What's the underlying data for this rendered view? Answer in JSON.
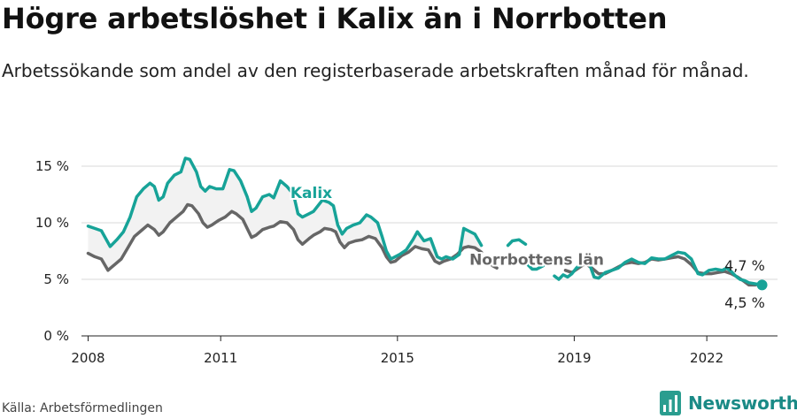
{
  "header": {
    "title": "Högre arbetslöshet i Kalix än i Norrbotten",
    "subtitle": "Arbetssökande som andel av den registerbaserade arbetskraften månad för månad."
  },
  "footer": {
    "source": "Källa: Arbetsförmedlingen",
    "brand": "Newsworthy"
  },
  "colors": {
    "kalix": "#17a398",
    "norrbotten": "#666666",
    "fill": "#f2f2f2",
    "grid": "#d9d9d9"
  },
  "chart_data": {
    "type": "line",
    "title": "Högre arbetslöshet i Kalix än i Norrbotten",
    "xlabel": "",
    "ylabel": "",
    "xlim": [
      2007.85,
      2023.6
    ],
    "ylim": [
      0,
      15
    ],
    "y_ticks": [
      0,
      5,
      10,
      15
    ],
    "y_tick_labels": [
      "0 %",
      "5 %",
      "10 %",
      "15 %"
    ],
    "x_ticks": [
      2008,
      2011,
      2015,
      2019,
      2022
    ],
    "x_tick_labels": [
      "2008",
      "2011",
      "2015",
      "2019",
      "2022"
    ],
    "grid": true,
    "series": [
      {
        "name": "Kalix",
        "label": "Kalix",
        "points": [
          [
            2008.0,
            9.7
          ],
          [
            2008.15,
            9.5
          ],
          [
            2008.3,
            9.3
          ],
          [
            2008.5,
            7.9
          ],
          [
            2008.65,
            8.5
          ],
          [
            2008.8,
            9.2
          ],
          [
            2008.95,
            10.5
          ],
          [
            2009.1,
            12.3
          ],
          [
            2009.25,
            13.0
          ],
          [
            2009.4,
            13.5
          ],
          [
            2009.5,
            13.2
          ],
          [
            2009.6,
            12.0
          ],
          [
            2009.7,
            12.3
          ],
          [
            2009.8,
            13.5
          ],
          [
            2009.95,
            14.2
          ],
          [
            2010.1,
            14.5
          ],
          [
            2010.2,
            15.7
          ],
          [
            2010.3,
            15.6
          ],
          [
            2010.45,
            14.5
          ],
          [
            2010.55,
            13.2
          ],
          [
            2010.65,
            12.8
          ],
          [
            2010.75,
            13.2
          ],
          [
            2010.9,
            13.0
          ],
          [
            2011.05,
            13.0
          ],
          [
            2011.2,
            14.7
          ],
          [
            2011.3,
            14.6
          ],
          [
            2011.45,
            13.7
          ],
          [
            2011.6,
            12.3
          ],
          [
            2011.7,
            11.0
          ],
          [
            2011.8,
            11.3
          ],
          [
            2011.95,
            12.3
          ],
          [
            2012.1,
            12.5
          ],
          [
            2012.2,
            12.2
          ],
          [
            2012.35,
            13.7
          ],
          [
            2012.5,
            13.2
          ],
          [
            2012.65,
            12.5
          ],
          [
            2012.75,
            10.8
          ],
          [
            2012.85,
            10.5
          ],
          [
            2013.0,
            10.8
          ],
          [
            2013.1,
            11.0
          ],
          [
            2013.2,
            11.5
          ],
          [
            2013.3,
            12.0
          ],
          [
            2013.45,
            11.8
          ],
          [
            2013.55,
            11.5
          ],
          [
            2013.65,
            9.8
          ],
          [
            2013.75,
            9.0
          ],
          [
            2013.85,
            9.5
          ],
          [
            2014.0,
            9.8
          ],
          [
            2014.15,
            10.0
          ],
          [
            2014.3,
            10.7
          ],
          [
            2014.4,
            10.5
          ],
          [
            2014.55,
            10.0
          ],
          [
            2014.65,
            8.8
          ],
          [
            2014.75,
            7.5
          ],
          [
            2014.85,
            6.8
          ],
          [
            2014.95,
            7.0
          ],
          [
            2015.05,
            7.2
          ],
          [
            2015.2,
            7.6
          ],
          [
            2015.35,
            8.5
          ],
          [
            2015.45,
            9.2
          ],
          [
            2015.6,
            8.4
          ],
          [
            2015.75,
            8.6
          ],
          [
            2015.9,
            7.0
          ],
          [
            2016.0,
            6.8
          ],
          [
            2016.1,
            7.0
          ],
          [
            2016.25,
            6.8
          ],
          [
            2016.4,
            7.2
          ],
          [
            2016.5,
            9.5
          ],
          [
            2016.6,
            9.3
          ],
          [
            2016.75,
            9.0
          ],
          [
            2016.9,
            8.0
          ],
          null,
          [
            2017.5,
            8.0
          ],
          [
            2017.6,
            8.4
          ],
          [
            2017.75,
            8.5
          ],
          [
            2017.9,
            8.1
          ],
          null,
          [
            2017.95,
            6.3
          ],
          [
            2018.05,
            5.9
          ],
          [
            2018.15,
            5.9
          ],
          [
            2018.3,
            6.2
          ],
          null,
          [
            2018.55,
            5.3
          ],
          [
            2018.65,
            5.0
          ],
          [
            2018.75,
            5.4
          ],
          [
            2018.85,
            5.2
          ],
          [
            2018.95,
            5.5
          ],
          [
            2019.05,
            6.0
          ],
          [
            2019.15,
            6.3
          ],
          [
            2019.25,
            6.8
          ],
          [
            2019.35,
            6.3
          ],
          [
            2019.45,
            5.2
          ],
          [
            2019.55,
            5.1
          ],
          [
            2019.7,
            5.6
          ],
          [
            2019.85,
            5.8
          ],
          [
            2020.0,
            6.0
          ],
          [
            2020.15,
            6.5
          ],
          [
            2020.3,
            6.8
          ],
          [
            2020.45,
            6.5
          ],
          [
            2020.6,
            6.4
          ],
          [
            2020.75,
            6.9
          ],
          [
            2020.9,
            6.8
          ],
          [
            2021.05,
            6.8
          ],
          [
            2021.2,
            7.1
          ],
          [
            2021.35,
            7.4
          ],
          [
            2021.5,
            7.3
          ],
          [
            2021.65,
            6.8
          ],
          [
            2021.8,
            5.5
          ],
          [
            2021.9,
            5.4
          ],
          [
            2022.05,
            5.8
          ],
          [
            2022.2,
            5.9
          ],
          [
            2022.35,
            5.8
          ],
          [
            2022.45,
            6.0
          ],
          [
            2022.55,
            5.7
          ],
          [
            2022.65,
            5.3
          ],
          [
            2022.75,
            5.0
          ],
          [
            2022.85,
            4.9
          ],
          [
            2022.95,
            4.7
          ],
          [
            2023.1,
            4.6
          ],
          [
            2023.25,
            4.5
          ]
        ]
      },
      {
        "name": "Norrbottens län",
        "label": "Norrbottens län",
        "points": [
          [
            2008.0,
            7.3
          ],
          [
            2008.15,
            7.0
          ],
          [
            2008.3,
            6.8
          ],
          [
            2008.45,
            5.8
          ],
          [
            2008.6,
            6.3
          ],
          [
            2008.75,
            6.8
          ],
          [
            2008.9,
            7.8
          ],
          [
            2009.05,
            8.8
          ],
          [
            2009.2,
            9.3
          ],
          [
            2009.35,
            9.8
          ],
          [
            2009.5,
            9.4
          ],
          [
            2009.6,
            8.9
          ],
          [
            2009.7,
            9.2
          ],
          [
            2009.85,
            10.0
          ],
          [
            2010.0,
            10.5
          ],
          [
            2010.15,
            11.0
          ],
          [
            2010.25,
            11.6
          ],
          [
            2010.35,
            11.5
          ],
          [
            2010.5,
            10.8
          ],
          [
            2010.6,
            10.0
          ],
          [
            2010.7,
            9.6
          ],
          [
            2010.8,
            9.8
          ],
          [
            2010.95,
            10.2
          ],
          [
            2011.1,
            10.5
          ],
          [
            2011.25,
            11.0
          ],
          [
            2011.35,
            10.8
          ],
          [
            2011.5,
            10.3
          ],
          [
            2011.6,
            9.5
          ],
          [
            2011.7,
            8.7
          ],
          [
            2011.8,
            8.9
          ],
          [
            2011.95,
            9.4
          ],
          [
            2012.1,
            9.6
          ],
          [
            2012.2,
            9.7
          ],
          [
            2012.35,
            10.1
          ],
          [
            2012.5,
            10.0
          ],
          [
            2012.65,
            9.4
          ],
          [
            2012.75,
            8.5
          ],
          [
            2012.85,
            8.1
          ],
          [
            2013.0,
            8.6
          ],
          [
            2013.1,
            8.9
          ],
          [
            2013.25,
            9.2
          ],
          [
            2013.35,
            9.5
          ],
          [
            2013.5,
            9.4
          ],
          [
            2013.6,
            9.2
          ],
          [
            2013.7,
            8.3
          ],
          [
            2013.8,
            7.8
          ],
          [
            2013.9,
            8.2
          ],
          [
            2014.05,
            8.4
          ],
          [
            2014.2,
            8.5
          ],
          [
            2014.35,
            8.8
          ],
          [
            2014.5,
            8.6
          ],
          [
            2014.65,
            7.8
          ],
          [
            2014.75,
            7.0
          ],
          [
            2014.85,
            6.5
          ],
          [
            2014.95,
            6.6
          ],
          [
            2015.1,
            7.1
          ],
          [
            2015.25,
            7.4
          ],
          [
            2015.4,
            7.9
          ],
          [
            2015.55,
            7.7
          ],
          [
            2015.7,
            7.6
          ],
          [
            2015.85,
            6.6
          ],
          [
            2015.95,
            6.4
          ],
          [
            2016.05,
            6.6
          ],
          [
            2016.2,
            6.8
          ],
          [
            2016.35,
            7.2
          ],
          [
            2016.5,
            7.8
          ],
          [
            2016.6,
            7.9
          ],
          [
            2016.75,
            7.8
          ],
          [
            2016.9,
            7.4
          ],
          null,
          [
            2017.15,
            6.2
          ],
          [
            2017.25,
            6.0
          ],
          null,
          [
            2018.8,
            5.8
          ],
          [
            2018.95,
            5.6
          ],
          [
            2019.1,
            6.0
          ],
          [
            2019.25,
            6.4
          ],
          [
            2019.4,
            6.0
          ],
          [
            2019.55,
            5.5
          ],
          [
            2019.7,
            5.5
          ],
          [
            2019.85,
            5.8
          ],
          [
            2020.0,
            6.1
          ],
          [
            2020.15,
            6.4
          ],
          [
            2020.3,
            6.5
          ],
          [
            2020.45,
            6.4
          ],
          [
            2020.6,
            6.5
          ],
          [
            2020.75,
            6.8
          ],
          [
            2020.9,
            6.7
          ],
          [
            2021.05,
            6.8
          ],
          [
            2021.2,
            6.9
          ],
          [
            2021.35,
            7.0
          ],
          [
            2021.5,
            6.8
          ],
          [
            2021.65,
            6.3
          ],
          [
            2021.8,
            5.6
          ],
          [
            2021.95,
            5.5
          ],
          [
            2022.1,
            5.5
          ],
          [
            2022.25,
            5.6
          ],
          [
            2022.4,
            5.7
          ],
          [
            2022.55,
            5.5
          ],
          [
            2022.7,
            5.2
          ],
          [
            2022.85,
            4.8
          ],
          [
            2022.95,
            4.5
          ],
          [
            2023.1,
            4.5
          ],
          [
            2023.25,
            4.7
          ]
        ]
      }
    ],
    "annotations": {
      "kalix_label": "Kalix",
      "norrbotten_label": "Norrbottens län",
      "end_label_top": "4,7 %",
      "end_label_bottom": "4,5 %"
    }
  }
}
